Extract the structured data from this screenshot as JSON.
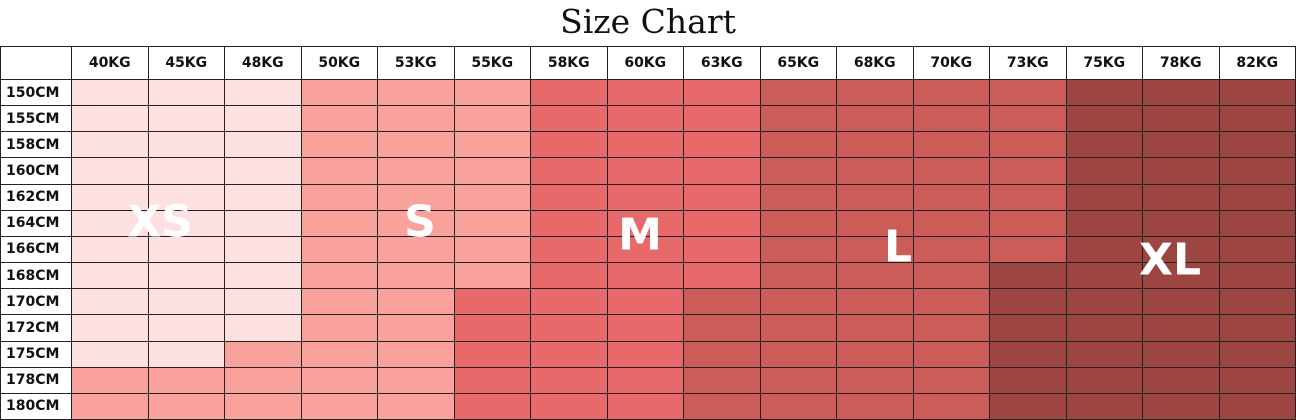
{
  "header": {
    "title": "Size Chart"
  },
  "table": {
    "columns": [
      "40KG",
      "45KG",
      "48KG",
      "50KG",
      "53KG",
      "55KG",
      "58KG",
      "60KG",
      "63KG",
      "65KG",
      "68KG",
      "70KG",
      "73KG",
      "75KG",
      "78KG",
      "82KG"
    ],
    "rows": [
      "150CM",
      "155CM",
      "158CM",
      "160CM",
      "162CM",
      "164CM",
      "166CM",
      "168CM",
      "170CM",
      "172CM",
      "175CM",
      "178CM",
      "180CM"
    ]
  },
  "sizes": [
    "XS",
    "S",
    "M",
    "L",
    "XL"
  ]
}
